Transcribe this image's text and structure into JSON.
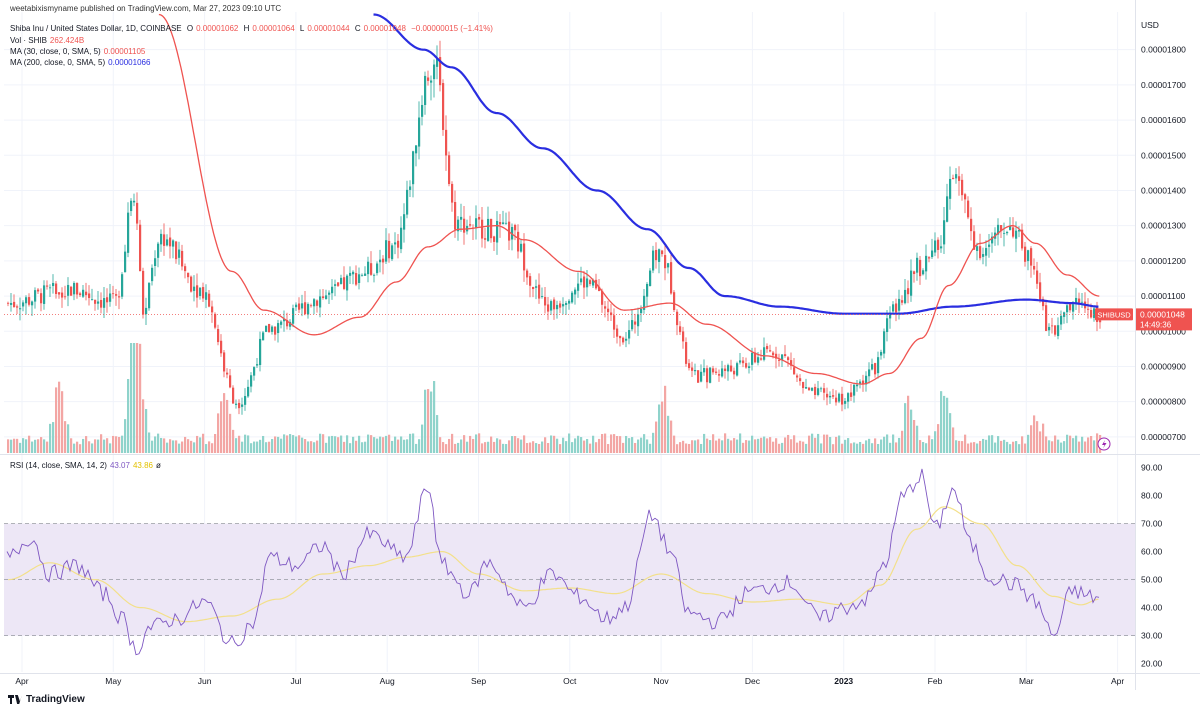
{
  "publisher": "weetabixismyname published on TradingView.com, Mar 27, 2023 09:10 UTC",
  "legend": {
    "symbol": "Shiba Inu / United States Dollar, 1D, COINBASE",
    "o_label": "O",
    "o_value": "0.00001062",
    "h_label": "H",
    "h_value": "0.00001064",
    "l_label": "L",
    "l_value": "0.00001044",
    "c_label": "C",
    "c_value": "0.00001048",
    "change": "−0.00000015 (−1.41%)",
    "vol_label": "Vol · SHIB",
    "vol_value": "262.424B",
    "ma30_label": "MA (30, close, 0, SMA, 5)",
    "ma30_value": "0.00001105",
    "ma200_label": "MA (200, close, 0, SMA, 5)",
    "ma200_value": "0.00001066",
    "rsi_label": "RSI (14, close, SMA, 14, 2)",
    "rsi_value": "43.07",
    "rsi_sma_value": "43.86",
    "rsi_icon": "hide-icon"
  },
  "price_tag": {
    "symbol": "SHIBUSD",
    "value": "0.00001048",
    "countdown": "14:49:36"
  },
  "colors": {
    "up": "#26a69a",
    "down": "#ef5350",
    "ma30": "#ef5350",
    "ma200": "#2a2ee0",
    "rsi": "#7e57c2",
    "rsi_sma": "#f3e08a",
    "rsi_band": "#ede7f6",
    "vol_up": "#8fd3cb",
    "vol_down": "#f3a6a4"
  },
  "footer": {
    "brand": "TradingView"
  },
  "chart_data": [
    {
      "type": "candlestick",
      "currency": "USD",
      "y_ticks": [
        "0.00001800",
        "0.00001700",
        "0.00001600",
        "0.00001500",
        "0.00001400",
        "0.00001300",
        "0.00001200",
        "0.00001100",
        "0.00001000",
        "0.00000900",
        "0.00000800",
        "0.00000700"
      ],
      "ylim": [
        6.4e-06,
        1.89e-05
      ],
      "x_ticks": [
        "Apr",
        "May",
        "Jun",
        "Jul",
        "Aug",
        "Sep",
        "Oct",
        "Nov",
        "Dec",
        "2023",
        "Feb",
        "Mar",
        "Apr"
      ],
      "close_path_months": [
        "Apr",
        "May",
        "Jun",
        "Jul",
        "Aug",
        "Sep",
        "Oct",
        "Nov",
        "Dec",
        "2023",
        "Feb",
        "Mar",
        "Apr"
      ],
      "close_keypoints": [
        {
          "m": -0.15,
          "v": 1.08e-05
        },
        {
          "m": 0.5,
          "v": 1.12e-05
        },
        {
          "m": 1.0,
          "v": 1.08e-05
        },
        {
          "m": 1.22,
          "v": 1.4e-05
        },
        {
          "m": 1.32,
          "v": 1.07e-05
        },
        {
          "m": 1.5,
          "v": 1.27e-05
        },
        {
          "m": 1.95,
          "v": 1.12e-05
        },
        {
          "m": 2.35,
          "v": 8e-06
        },
        {
          "m": 2.72,
          "v": 1.01e-05
        },
        {
          "m": 3.3,
          "v": 1.1e-05
        },
        {
          "m": 3.75,
          "v": 1.17e-05
        },
        {
          "m": 4.05,
          "v": 1.24e-05
        },
        {
          "m": 4.5,
          "v": 1.76e-05
        },
        {
          "m": 4.75,
          "v": 1.31e-05
        },
        {
          "m": 5.3,
          "v": 1.28e-05
        },
        {
          "m": 5.75,
          "v": 1.07e-05
        },
        {
          "m": 6.15,
          "v": 1.14e-05
        },
        {
          "m": 6.6,
          "v": 9.9e-06
        },
        {
          "m": 6.97,
          "v": 1.22e-05
        },
        {
          "m": 7.35,
          "v": 8.7e-06
        },
        {
          "m": 7.7,
          "v": 8.9e-06
        },
        {
          "m": 8.25,
          "v": 9.4e-06
        },
        {
          "m": 8.65,
          "v": 8.2e-06
        },
        {
          "m": 9.0,
          "v": 8.1e-06
        },
        {
          "m": 9.3,
          "v": 8.9e-06
        },
        {
          "m": 9.55,
          "v": 1.06e-05
        },
        {
          "m": 9.8,
          "v": 1.18e-05
        },
        {
          "m": 10.05,
          "v": 1.24e-05
        },
        {
          "m": 10.15,
          "v": 1.46e-05
        },
        {
          "m": 10.5,
          "v": 1.23e-05
        },
        {
          "m": 10.8,
          "v": 1.3e-05
        },
        {
          "m": 11.05,
          "v": 1.2e-05
        },
        {
          "m": 11.25,
          "v": 1e-05
        },
        {
          "m": 11.55,
          "v": 1.08e-05
        },
        {
          "m": 11.8,
          "v": 1.05e-05
        }
      ],
      "ma30_keypoints": [
        {
          "m": 1.5,
          "v": 1.9e-05
        },
        {
          "m": 2.3,
          "v": 1.17e-05
        },
        {
          "m": 2.65,
          "v": 1.06e-05
        },
        {
          "m": 3.2,
          "v": 9.9e-06
        },
        {
          "m": 3.7,
          "v": 1.04e-05
        },
        {
          "m": 4.1,
          "v": 1.14e-05
        },
        {
          "m": 4.45,
          "v": 1.24e-05
        },
        {
          "m": 4.8,
          "v": 1.29e-05
        },
        {
          "m": 5.2,
          "v": 1.3e-05
        },
        {
          "m": 5.5,
          "v": 1.26e-05
        },
        {
          "m": 6.1,
          "v": 1.17e-05
        },
        {
          "m": 6.6,
          "v": 1.06e-05
        },
        {
          "m": 7.1,
          "v": 1.08e-05
        },
        {
          "m": 7.5,
          "v": 1.02e-05
        },
        {
          "m": 8.15,
          "v": 9.3e-06
        },
        {
          "m": 8.7,
          "v": 8.8e-06
        },
        {
          "m": 9.2,
          "v": 8.5e-06
        },
        {
          "m": 9.5,
          "v": 8.8e-06
        },
        {
          "m": 9.85,
          "v": 9.8e-06
        },
        {
          "m": 10.15,
          "v": 1.13e-05
        },
        {
          "m": 10.5,
          "v": 1.25e-05
        },
        {
          "m": 10.85,
          "v": 1.3e-05
        },
        {
          "m": 11.1,
          "v": 1.25e-05
        },
        {
          "m": 11.45,
          "v": 1.16e-05
        },
        {
          "m": 11.8,
          "v": 1.1e-05
        }
      ],
      "ma200_keypoints": [
        {
          "m": 3.85,
          "v": 1.9e-05
        },
        {
          "m": 4.4,
          "v": 1.8e-05
        },
        {
          "m": 4.7,
          "v": 1.75e-05
        },
        {
          "m": 5.2,
          "v": 1.62e-05
        },
        {
          "m": 5.7,
          "v": 1.52e-05
        },
        {
          "m": 6.3,
          "v": 1.4e-05
        },
        {
          "m": 6.85,
          "v": 1.29e-05
        },
        {
          "m": 7.3,
          "v": 1.18e-05
        },
        {
          "m": 7.7,
          "v": 1.1e-05
        },
        {
          "m": 8.3,
          "v": 1.07e-05
        },
        {
          "m": 9.0,
          "v": 1.05e-05
        },
        {
          "m": 9.6,
          "v": 1.05e-05
        },
        {
          "m": 10.2,
          "v": 1.07e-05
        },
        {
          "m": 11.0,
          "v": 1.09e-05
        },
        {
          "m": 11.5,
          "v": 1.08e-05
        },
        {
          "m": 11.8,
          "v": 1.07e-05
        }
      ],
      "volume_peaks": [
        {
          "m": 1.2,
          "v": 1.0
        },
        {
          "m": 1.28,
          "v": 0.6
        },
        {
          "m": 0.4,
          "v": 0.7
        },
        {
          "m": 2.2,
          "v": 0.55
        },
        {
          "m": 4.45,
          "v": 0.85
        },
        {
          "m": 7.0,
          "v": 0.62
        },
        {
          "m": 10.1,
          "v": 0.6
        },
        {
          "m": 9.7,
          "v": 0.45
        },
        {
          "m": 11.1,
          "v": 0.3
        }
      ],
      "last_price": "0.00001048"
    },
    {
      "type": "line",
      "name": "RSI (14, close, SMA, 14, 2)",
      "y_ticks": [
        "90.00",
        "80.00",
        "70.00",
        "60.00",
        "50.00",
        "40.00",
        "30.00",
        "20.00"
      ],
      "ylim": [
        17,
        92
      ],
      "band": [
        30,
        70
      ],
      "mid": 50,
      "rsi_keypoints": [
        {
          "m": -0.15,
          "v": 58
        },
        {
          "m": 0.1,
          "v": 65
        },
        {
          "m": 0.3,
          "v": 52
        },
        {
          "m": 0.6,
          "v": 55
        },
        {
          "m": 0.9,
          "v": 45
        },
        {
          "m": 1.1,
          "v": 36
        },
        {
          "m": 1.25,
          "v": 25
        },
        {
          "m": 1.4,
          "v": 33
        },
        {
          "m": 1.7,
          "v": 36
        },
        {
          "m": 2.0,
          "v": 42
        },
        {
          "m": 2.3,
          "v": 27
        },
        {
          "m": 2.55,
          "v": 35
        },
        {
          "m": 2.7,
          "v": 58
        },
        {
          "m": 3.0,
          "v": 55
        },
        {
          "m": 3.3,
          "v": 62
        },
        {
          "m": 3.5,
          "v": 52
        },
        {
          "m": 3.8,
          "v": 66
        },
        {
          "m": 4.2,
          "v": 58
        },
        {
          "m": 4.45,
          "v": 83
        },
        {
          "m": 4.6,
          "v": 55
        },
        {
          "m": 4.9,
          "v": 45
        },
        {
          "m": 5.1,
          "v": 56
        },
        {
          "m": 5.5,
          "v": 40
        },
        {
          "m": 5.8,
          "v": 52
        },
        {
          "m": 6.1,
          "v": 44
        },
        {
          "m": 6.4,
          "v": 36
        },
        {
          "m": 6.6,
          "v": 40
        },
        {
          "m": 6.9,
          "v": 73
        },
        {
          "m": 7.1,
          "v": 60
        },
        {
          "m": 7.3,
          "v": 38
        },
        {
          "m": 7.6,
          "v": 35
        },
        {
          "m": 8.0,
          "v": 46
        },
        {
          "m": 8.4,
          "v": 49
        },
        {
          "m": 8.75,
          "v": 36
        },
        {
          "m": 9.0,
          "v": 40
        },
        {
          "m": 9.25,
          "v": 43
        },
        {
          "m": 9.45,
          "v": 56
        },
        {
          "m": 9.65,
          "v": 80
        },
        {
          "m": 9.85,
          "v": 87
        },
        {
          "m": 10.0,
          "v": 68
        },
        {
          "m": 10.2,
          "v": 82
        },
        {
          "m": 10.4,
          "v": 62
        },
        {
          "m": 10.6,
          "v": 51
        },
        {
          "m": 10.9,
          "v": 48
        },
        {
          "m": 11.1,
          "v": 42
        },
        {
          "m": 11.3,
          "v": 30
        },
        {
          "m": 11.5,
          "v": 46
        },
        {
          "m": 11.7,
          "v": 44
        },
        {
          "m": 11.8,
          "v": 43
        }
      ],
      "sma_keypoints": [
        {
          "m": -0.15,
          "v": 50
        },
        {
          "m": 0.3,
          "v": 56
        },
        {
          "m": 0.8,
          "v": 50
        },
        {
          "m": 1.3,
          "v": 40
        },
        {
          "m": 1.8,
          "v": 35
        },
        {
          "m": 2.3,
          "v": 37
        },
        {
          "m": 2.8,
          "v": 43
        },
        {
          "m": 3.3,
          "v": 52
        },
        {
          "m": 3.8,
          "v": 55
        },
        {
          "m": 4.2,
          "v": 58
        },
        {
          "m": 4.6,
          "v": 60
        },
        {
          "m": 5.0,
          "v": 52
        },
        {
          "m": 5.5,
          "v": 46
        },
        {
          "m": 6.0,
          "v": 47
        },
        {
          "m": 6.5,
          "v": 45
        },
        {
          "m": 7.0,
          "v": 52
        },
        {
          "m": 7.5,
          "v": 45
        },
        {
          "m": 8.0,
          "v": 42
        },
        {
          "m": 8.5,
          "v": 43
        },
        {
          "m": 9.0,
          "v": 41
        },
        {
          "m": 9.4,
          "v": 48
        },
        {
          "m": 9.8,
          "v": 68
        },
        {
          "m": 10.1,
          "v": 76
        },
        {
          "m": 10.5,
          "v": 70
        },
        {
          "m": 10.9,
          "v": 55
        },
        {
          "m": 11.3,
          "v": 44
        },
        {
          "m": 11.6,
          "v": 41
        },
        {
          "m": 11.8,
          "v": 43
        }
      ]
    }
  ]
}
